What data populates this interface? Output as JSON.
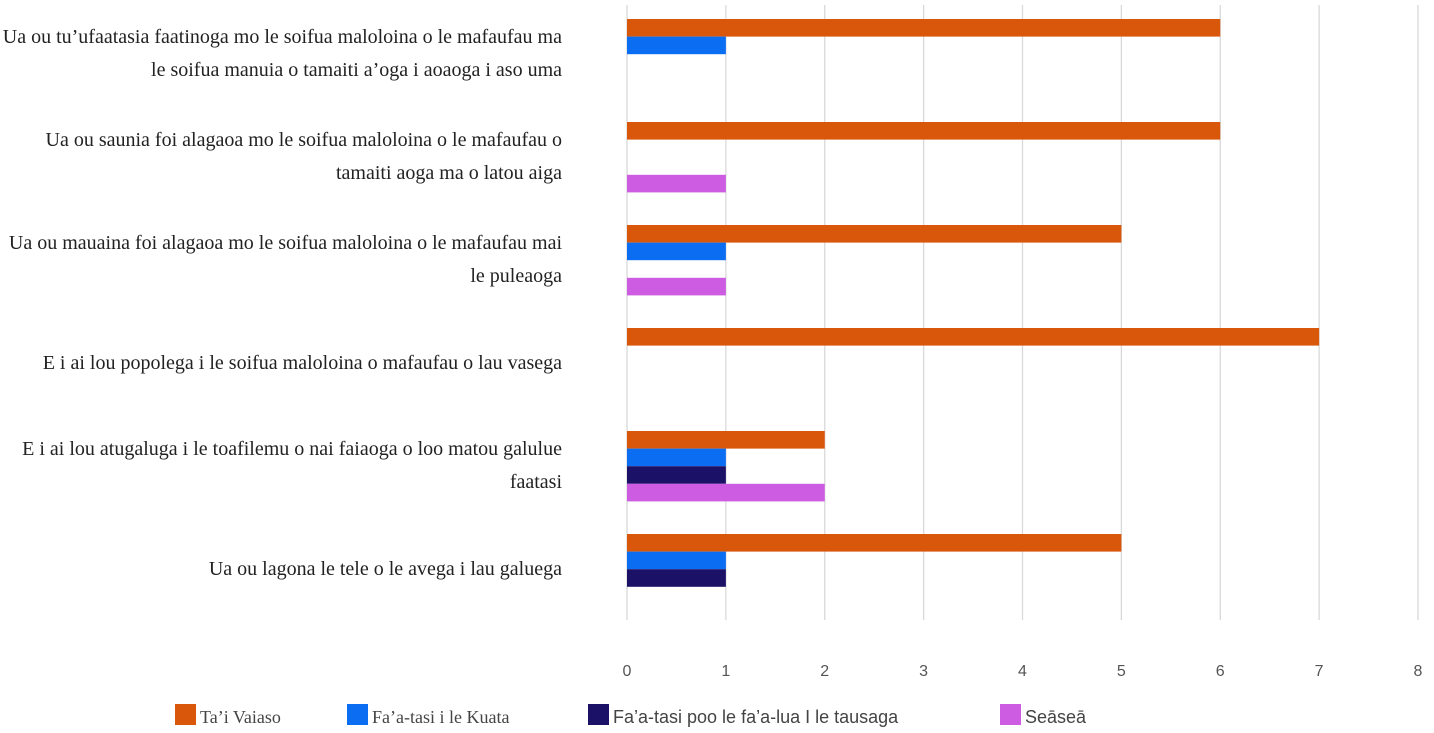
{
  "chart_data": {
    "type": "bar",
    "orientation": "horizontal",
    "categories": [
      "Ua ou tu’ufaatasia faatinoga mo le soifua maloloina o le mafaufau ma le soifua manuia o tamaiti a’oga i aoaoga i aso uma",
      "Ua ou saunia foi alagaoa mo le soifua maloloina o le mafaufau o tamaiti aoga ma o latou aiga",
      "Ua ou mauaina foi alagaoa mo le soifua maloloina o le mafaufau mai le puleaoga",
      "E i ai lou popolega i le soifua maloloina o mafaufau o lau vasega",
      "E i ai lou atugaluga i le toafilemu o nai faiaoga o loo matou galulue faatasi",
      "Ua ou lagona le tele o le avega i lau galuega"
    ],
    "series": [
      {
        "name": "Ta’i Vaiaso",
        "color": "#d9570b",
        "values": [
          6,
          6,
          5,
          7,
          2,
          5
        ]
      },
      {
        "name": "Fa’a-tasi i le Kuata",
        "color": "#0b6ef2",
        "values": [
          1,
          0,
          1,
          0,
          1,
          1
        ]
      },
      {
        "name": "Fa’a-tasi poo le fa’a-lua I le tausaga",
        "color": "#1b1268",
        "values": [
          0,
          0,
          0,
          0,
          1,
          1
        ]
      },
      {
        "name": "Seāseā",
        "color": "#cd5ce2",
        "values": [
          0,
          1,
          1,
          0,
          2,
          0
        ]
      }
    ],
    "xlim": [
      0,
      8
    ],
    "xticks": [
      0,
      1,
      2,
      3,
      4,
      5,
      6,
      7,
      8
    ],
    "grid": true,
    "legend": "bottom"
  }
}
